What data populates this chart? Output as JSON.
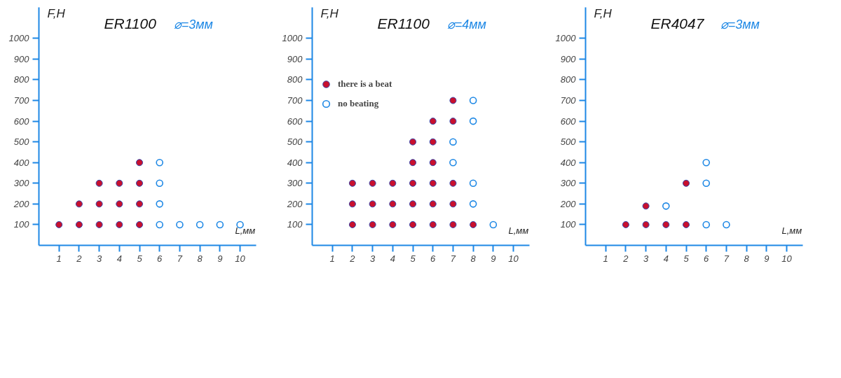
{
  "chart_data": [
    {
      "type": "scatter",
      "xlabel": "L,мм",
      "ylabel": "F,H",
      "annotations": [
        "ER1100",
        "⌀=3мм"
      ],
      "marker": "circle",
      "grid": false,
      "xlim": [
        0,
        10.8
      ],
      "ylim": [
        0,
        1150
      ],
      "xticks": [
        1,
        2,
        3,
        4,
        5,
        6,
        7,
        8,
        9,
        10
      ],
      "yticks": [
        100,
        200,
        300,
        400,
        500,
        600,
        700,
        800,
        900,
        1000
      ],
      "series": [
        {
          "color": "#c8102e",
          "x": [
            1,
            2,
            2,
            3,
            3,
            3,
            4,
            4,
            4,
            5,
            5,
            5,
            5
          ],
          "values": [
            100,
            100,
            200,
            100,
            200,
            300,
            100,
            200,
            300,
            100,
            200,
            300,
            400
          ]
        },
        {
          "color": "#1e88e5",
          "x": [
            6,
            6,
            6,
            6,
            7,
            8,
            9,
            10
          ],
          "values": [
            100,
            200,
            300,
            400,
            100,
            100,
            100,
            100
          ]
        }
      ]
    },
    {
      "type": "scatter",
      "xlabel": "L,мм",
      "ylabel": "F,H",
      "annotations": [
        "ER1100",
        "⌀=4мм"
      ],
      "marker": "circle",
      "grid": false,
      "legend": "left",
      "xlim": [
        0,
        10.8
      ],
      "ylim": [
        0,
        1150
      ],
      "xticks": [
        1,
        2,
        3,
        4,
        5,
        6,
        7,
        8,
        9,
        10
      ],
      "yticks": [
        100,
        200,
        300,
        400,
        500,
        600,
        700,
        800,
        900,
        1000
      ],
      "series": [
        {
          "name": "there is a beat",
          "color": "#c8102e",
          "x": [
            2,
            2,
            2,
            3,
            3,
            3,
            4,
            4,
            4,
            5,
            5,
            5,
            5,
            5,
            6,
            6,
            6,
            6,
            6,
            6,
            7,
            7,
            7,
            7,
            7,
            8
          ],
          "values": [
            100,
            200,
            300,
            100,
            200,
            300,
            100,
            200,
            300,
            100,
            200,
            300,
            400,
            500,
            100,
            200,
            300,
            400,
            500,
            600,
            100,
            200,
            300,
            600,
            700,
            100
          ]
        },
        {
          "name": "no beating",
          "color": "#1e88e5",
          "x": [
            7,
            7,
            8,
            8,
            8,
            8,
            9
          ],
          "values": [
            400,
            500,
            200,
            300,
            600,
            700,
            100
          ]
        }
      ]
    },
    {
      "type": "scatter",
      "xlabel": "L,мм",
      "ylabel": "F,H",
      "annotations": [
        "ER4047",
        "⌀=3мм"
      ],
      "marker": "circle",
      "grid": false,
      "xlim": [
        0,
        10.8
      ],
      "ylim": [
        0,
        1150
      ],
      "xticks": [
        1,
        2,
        3,
        4,
        5,
        6,
        7,
        8,
        9,
        10
      ],
      "yticks": [
        100,
        200,
        300,
        400,
        500,
        600,
        700,
        800,
        900,
        1000
      ],
      "series": [
        {
          "color": "#c8102e",
          "x": [
            2,
            3,
            3,
            4,
            5,
            5
          ],
          "values": [
            100,
            100,
            190,
            100,
            100,
            300
          ]
        },
        {
          "color": "#1e88e5",
          "x": [
            4,
            6,
            6,
            6,
            7
          ],
          "values": [
            190,
            100,
            300,
            400,
            100
          ]
        }
      ]
    }
  ]
}
